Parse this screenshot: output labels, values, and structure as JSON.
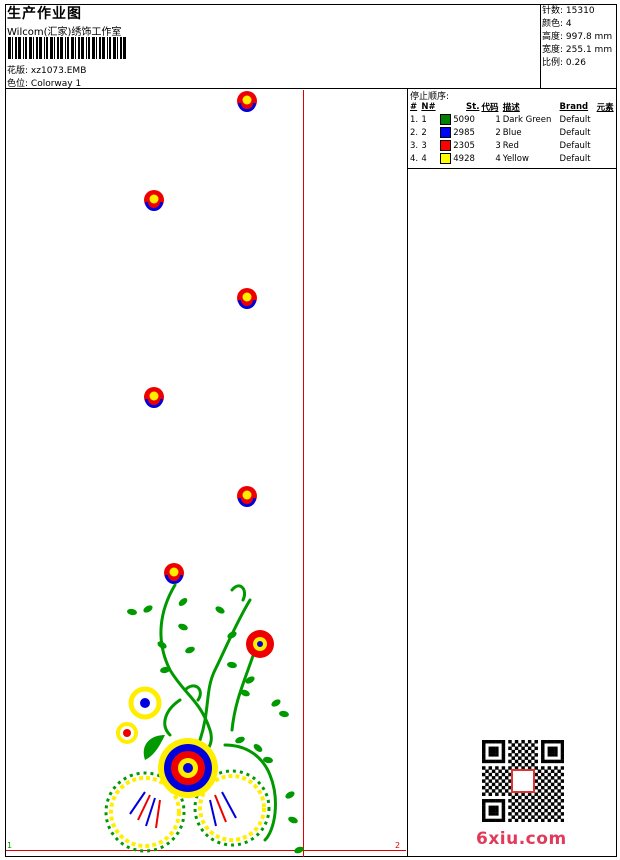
{
  "header": {
    "title": "生产作业图",
    "company": "Wilcom(汇家)绣饰工作室",
    "design_label": "花版:",
    "design_value": "xz1073.EMB",
    "colorway_label": "色位:",
    "colorway_value": "Colorway 1"
  },
  "stats": [
    {
      "label": "针数:",
      "value": "15310"
    },
    {
      "label": "颜色:",
      "value": "4"
    },
    {
      "label": "高度:",
      "value": "997.8 mm"
    },
    {
      "label": "宽度:",
      "value": "255.1 mm"
    },
    {
      "label": "比例:",
      "value": "0.26"
    }
  ],
  "stop_sequence": {
    "title": "停止顺序:",
    "columns": [
      "#",
      "N#",
      "St.",
      "代码",
      "描述",
      "Brand",
      "元素"
    ],
    "rows": [
      {
        "idx": "1.",
        "n": "1",
        "st": "5090",
        "code": "1",
        "desc": "Dark Green",
        "brand": "Default",
        "color": "#008000"
      },
      {
        "idx": "2.",
        "n": "2",
        "st": "2985",
        "code": "2",
        "desc": "Blue",
        "brand": "Default",
        "color": "#0000ff"
      },
      {
        "idx": "3.",
        "n": "3",
        "st": "2305",
        "code": "3",
        "desc": "Red",
        "brand": "Default",
        "color": "#ff0000"
      },
      {
        "idx": "4.",
        "n": "4",
        "st": "4928",
        "code": "4",
        "desc": "Yellow",
        "brand": "Default",
        "color": "#ffff00"
      }
    ]
  },
  "canvas": {
    "marker_left": "1",
    "marker_right": "2"
  },
  "watermark": "6xiu.com",
  "colors": {
    "green": "#009900",
    "blue": "#0000dd",
    "red": "#ee0000",
    "yellow": "#ffee00",
    "guide": "#e00000",
    "watermark": "#e23a5a"
  }
}
